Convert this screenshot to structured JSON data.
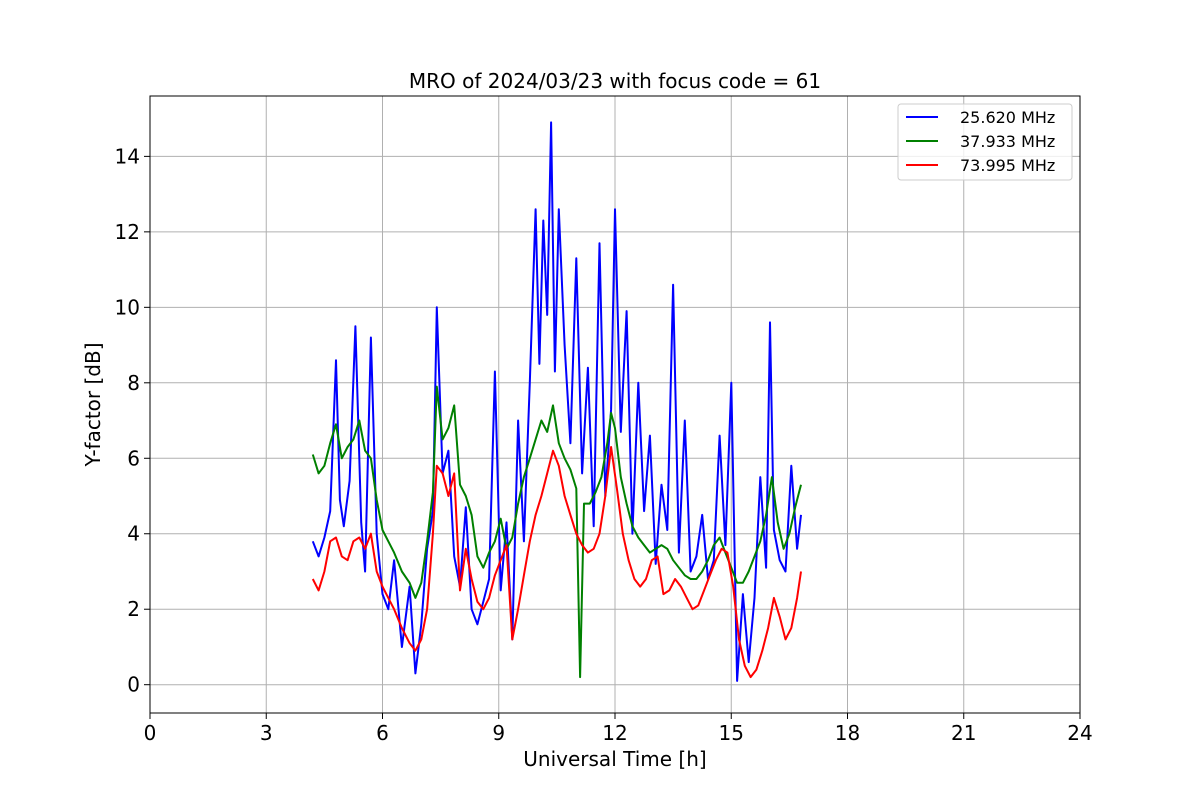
{
  "chart_data": {
    "type": "line",
    "title": "MRO of 2024/03/23 with focus code = 61",
    "xlabel": "Universal Time [h]",
    "ylabel": "Y-factor [dB]",
    "xlim": [
      0,
      24
    ],
    "ylim": [
      -0.75,
      15.6
    ],
    "x_ticks": [
      0,
      3,
      6,
      9,
      12,
      15,
      18,
      21,
      24
    ],
    "y_ticks": [
      0,
      2,
      4,
      6,
      8,
      10,
      12,
      14
    ],
    "grid": true,
    "legend_position": "top-right",
    "series": [
      {
        "name": "25.620 MHz",
        "color": "#0000ff",
        "x": [
          4.2,
          4.35,
          4.5,
          4.65,
          4.8,
          4.9,
          5.0,
          5.15,
          5.3,
          5.45,
          5.55,
          5.7,
          5.85,
          6.0,
          6.15,
          6.3,
          6.5,
          6.7,
          6.85,
          7.0,
          7.15,
          7.3,
          7.4,
          7.55,
          7.7,
          7.85,
          8.0,
          8.15,
          8.3,
          8.45,
          8.6,
          8.75,
          8.9,
          9.05,
          9.2,
          9.35,
          9.5,
          9.65,
          9.8,
          9.95,
          10.05,
          10.15,
          10.25,
          10.35,
          10.45,
          10.55,
          10.7,
          10.85,
          11.0,
          11.15,
          11.3,
          11.45,
          11.6,
          11.75,
          11.9,
          12.0,
          12.15,
          12.3,
          12.45,
          12.6,
          12.75,
          12.9,
          13.05,
          13.2,
          13.35,
          13.5,
          13.65,
          13.8,
          13.95,
          14.1,
          14.25,
          14.4,
          14.55,
          14.7,
          14.85,
          15.0,
          15.15,
          15.3,
          15.45,
          15.6,
          15.75,
          15.9,
          16.0,
          16.1,
          16.25,
          16.4,
          16.55,
          16.7,
          16.8
        ],
        "values": [
          3.8,
          3.4,
          3.9,
          4.6,
          8.6,
          4.9,
          4.2,
          5.4,
          9.5,
          4.3,
          3.0,
          9.2,
          4.0,
          2.4,
          2.0,
          3.3,
          1.0,
          2.6,
          0.3,
          1.6,
          3.6,
          4.6,
          10.0,
          5.6,
          6.2,
          3.4,
          2.6,
          4.7,
          2.0,
          1.6,
          2.2,
          2.8,
          8.3,
          2.5,
          4.3,
          1.2,
          7.0,
          3.8,
          8.0,
          12.6,
          8.5,
          12.3,
          9.8,
          14.9,
          8.3,
          12.6,
          9.0,
          6.4,
          11.3,
          5.6,
          8.4,
          4.2,
          11.7,
          5.0,
          7.3,
          12.6,
          6.7,
          9.9,
          4.0,
          8.0,
          4.6,
          6.6,
          3.2,
          5.3,
          4.1,
          10.6,
          3.5,
          7.0,
          3.0,
          3.4,
          4.5,
          2.8,
          3.3,
          6.6,
          3.7,
          8.0,
          0.1,
          2.4,
          0.6,
          2.3,
          5.5,
          3.1,
          9.6,
          4.1,
          3.3,
          3.0,
          5.8,
          3.6,
          4.5
        ]
      },
      {
        "name": "37.933 MHz",
        "color": "#008000",
        "x": [
          4.2,
          4.35,
          4.5,
          4.65,
          4.8,
          4.95,
          5.1,
          5.25,
          5.4,
          5.55,
          5.7,
          5.85,
          6.0,
          6.15,
          6.3,
          6.5,
          6.7,
          6.85,
          7.0,
          7.15,
          7.3,
          7.4,
          7.55,
          7.7,
          7.85,
          8.0,
          8.15,
          8.3,
          8.45,
          8.6,
          8.75,
          8.9,
          9.05,
          9.2,
          9.35,
          9.5,
          9.65,
          9.8,
          9.95,
          10.1,
          10.25,
          10.4,
          10.55,
          10.7,
          10.85,
          11.0,
          11.1,
          11.2,
          11.35,
          11.5,
          11.65,
          11.8,
          11.9,
          12.0,
          12.15,
          12.3,
          12.45,
          12.6,
          12.75,
          12.9,
          13.05,
          13.2,
          13.35,
          13.5,
          13.65,
          13.8,
          13.95,
          14.1,
          14.25,
          14.4,
          14.55,
          14.7,
          14.85,
          15.0,
          15.15,
          15.3,
          15.45,
          15.6,
          15.75,
          15.9,
          16.05,
          16.2,
          16.35,
          16.5,
          16.65,
          16.8
        ],
        "values": [
          6.1,
          5.6,
          5.8,
          6.4,
          6.9,
          6.0,
          6.3,
          6.5,
          7.0,
          6.2,
          6.0,
          4.9,
          4.1,
          3.8,
          3.5,
          3.0,
          2.7,
          2.3,
          2.7,
          3.8,
          5.1,
          7.9,
          6.5,
          6.8,
          7.4,
          5.3,
          5.0,
          4.5,
          3.4,
          3.1,
          3.5,
          3.8,
          4.4,
          3.6,
          3.9,
          4.8,
          5.5,
          6.0,
          6.5,
          7.0,
          6.7,
          7.4,
          6.4,
          6.0,
          5.7,
          5.2,
          0.2,
          4.8,
          4.8,
          5.1,
          5.5,
          6.4,
          7.2,
          6.8,
          5.5,
          4.8,
          4.2,
          3.9,
          3.7,
          3.5,
          3.6,
          3.7,
          3.6,
          3.3,
          3.1,
          2.9,
          2.8,
          2.8,
          3.0,
          3.3,
          3.7,
          3.9,
          3.5,
          3.1,
          2.7,
          2.7,
          3.0,
          3.4,
          3.8,
          4.5,
          5.5,
          4.3,
          3.6,
          4.0,
          4.7,
          5.3
        ]
      },
      {
        "name": "73.995 MHz",
        "color": "#ff0000",
        "x": [
          4.2,
          4.35,
          4.5,
          4.65,
          4.8,
          4.95,
          5.1,
          5.25,
          5.4,
          5.55,
          5.7,
          5.85,
          6.0,
          6.15,
          6.3,
          6.5,
          6.7,
          6.85,
          7.0,
          7.15,
          7.3,
          7.4,
          7.55,
          7.7,
          7.85,
          8.0,
          8.15,
          8.3,
          8.45,
          8.6,
          8.75,
          8.9,
          9.05,
          9.2,
          9.35,
          9.5,
          9.65,
          9.8,
          9.95,
          10.1,
          10.25,
          10.4,
          10.55,
          10.7,
          10.85,
          11.0,
          11.15,
          11.3,
          11.45,
          11.6,
          11.75,
          11.9,
          12.05,
          12.2,
          12.35,
          12.5,
          12.65,
          12.8,
          12.95,
          13.1,
          13.25,
          13.4,
          13.55,
          13.7,
          13.85,
          14.0,
          14.15,
          14.3,
          14.45,
          14.6,
          14.75,
          14.9,
          15.05,
          15.2,
          15.35,
          15.5,
          15.65,
          15.8,
          15.95,
          16.1,
          16.25,
          16.4,
          16.55,
          16.7,
          16.8
        ],
        "values": [
          2.8,
          2.5,
          3.0,
          3.8,
          3.9,
          3.4,
          3.3,
          3.8,
          3.9,
          3.6,
          4.0,
          3.0,
          2.6,
          2.3,
          2.0,
          1.5,
          1.1,
          0.9,
          1.2,
          2.0,
          4.0,
          5.8,
          5.6,
          5.0,
          5.6,
          2.5,
          3.6,
          2.8,
          2.2,
          2.0,
          2.3,
          2.9,
          3.3,
          3.7,
          1.2,
          2.0,
          2.9,
          3.8,
          4.5,
          5.0,
          5.6,
          6.2,
          5.8,
          5.0,
          4.5,
          4.0,
          3.7,
          3.5,
          3.6,
          4.0,
          5.0,
          6.3,
          5.2,
          4.0,
          3.3,
          2.8,
          2.6,
          2.8,
          3.3,
          3.4,
          2.4,
          2.5,
          2.8,
          2.6,
          2.3,
          2.0,
          2.1,
          2.5,
          2.9,
          3.3,
          3.6,
          3.5,
          2.6,
          1.2,
          0.5,
          0.2,
          0.4,
          0.9,
          1.5,
          2.3,
          1.8,
          1.2,
          1.5,
          2.3,
          3.0
        ]
      }
    ]
  }
}
